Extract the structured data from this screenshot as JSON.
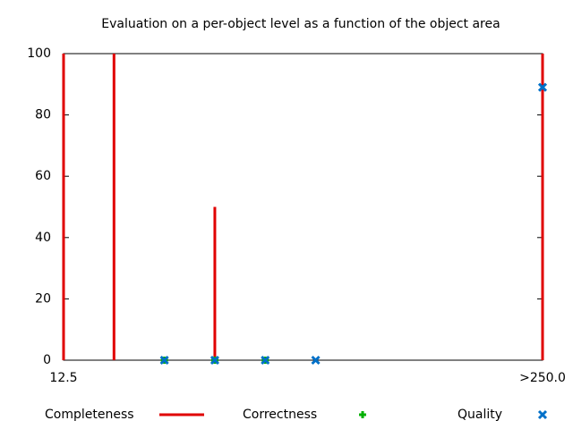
{
  "chart_data": {
    "type": "impulses-points",
    "title": "Evaluation on a per-object level as a function of the object area",
    "x": [
      12.5,
      37.5,
      62.5,
      87.5,
      112.5,
      137.5,
      250
    ],
    "xlim": [
      12.5,
      250
    ],
    "xticks": [
      12.5,
      {
        "value": 250,
        "label": ">250.0"
      }
    ],
    "ylim": [
      0,
      100
    ],
    "yticks": [
      0,
      20,
      40,
      60,
      80,
      100
    ],
    "grid": false,
    "legend": "bottom",
    "series": [
      {
        "name": "Completeness",
        "color": "#e00000",
        "style": "impulses",
        "values": [
          100,
          100,
          0,
          50,
          0,
          0,
          100
        ]
      },
      {
        "name": "Correctness",
        "color": "#00b000",
        "style": "plus",
        "values": [
          null,
          null,
          0,
          0,
          0,
          null,
          null
        ]
      },
      {
        "name": "Quality",
        "color": "#0070c8",
        "style": "cross",
        "values": [
          null,
          null,
          0,
          0,
          0,
          0,
          89
        ]
      }
    ]
  }
}
